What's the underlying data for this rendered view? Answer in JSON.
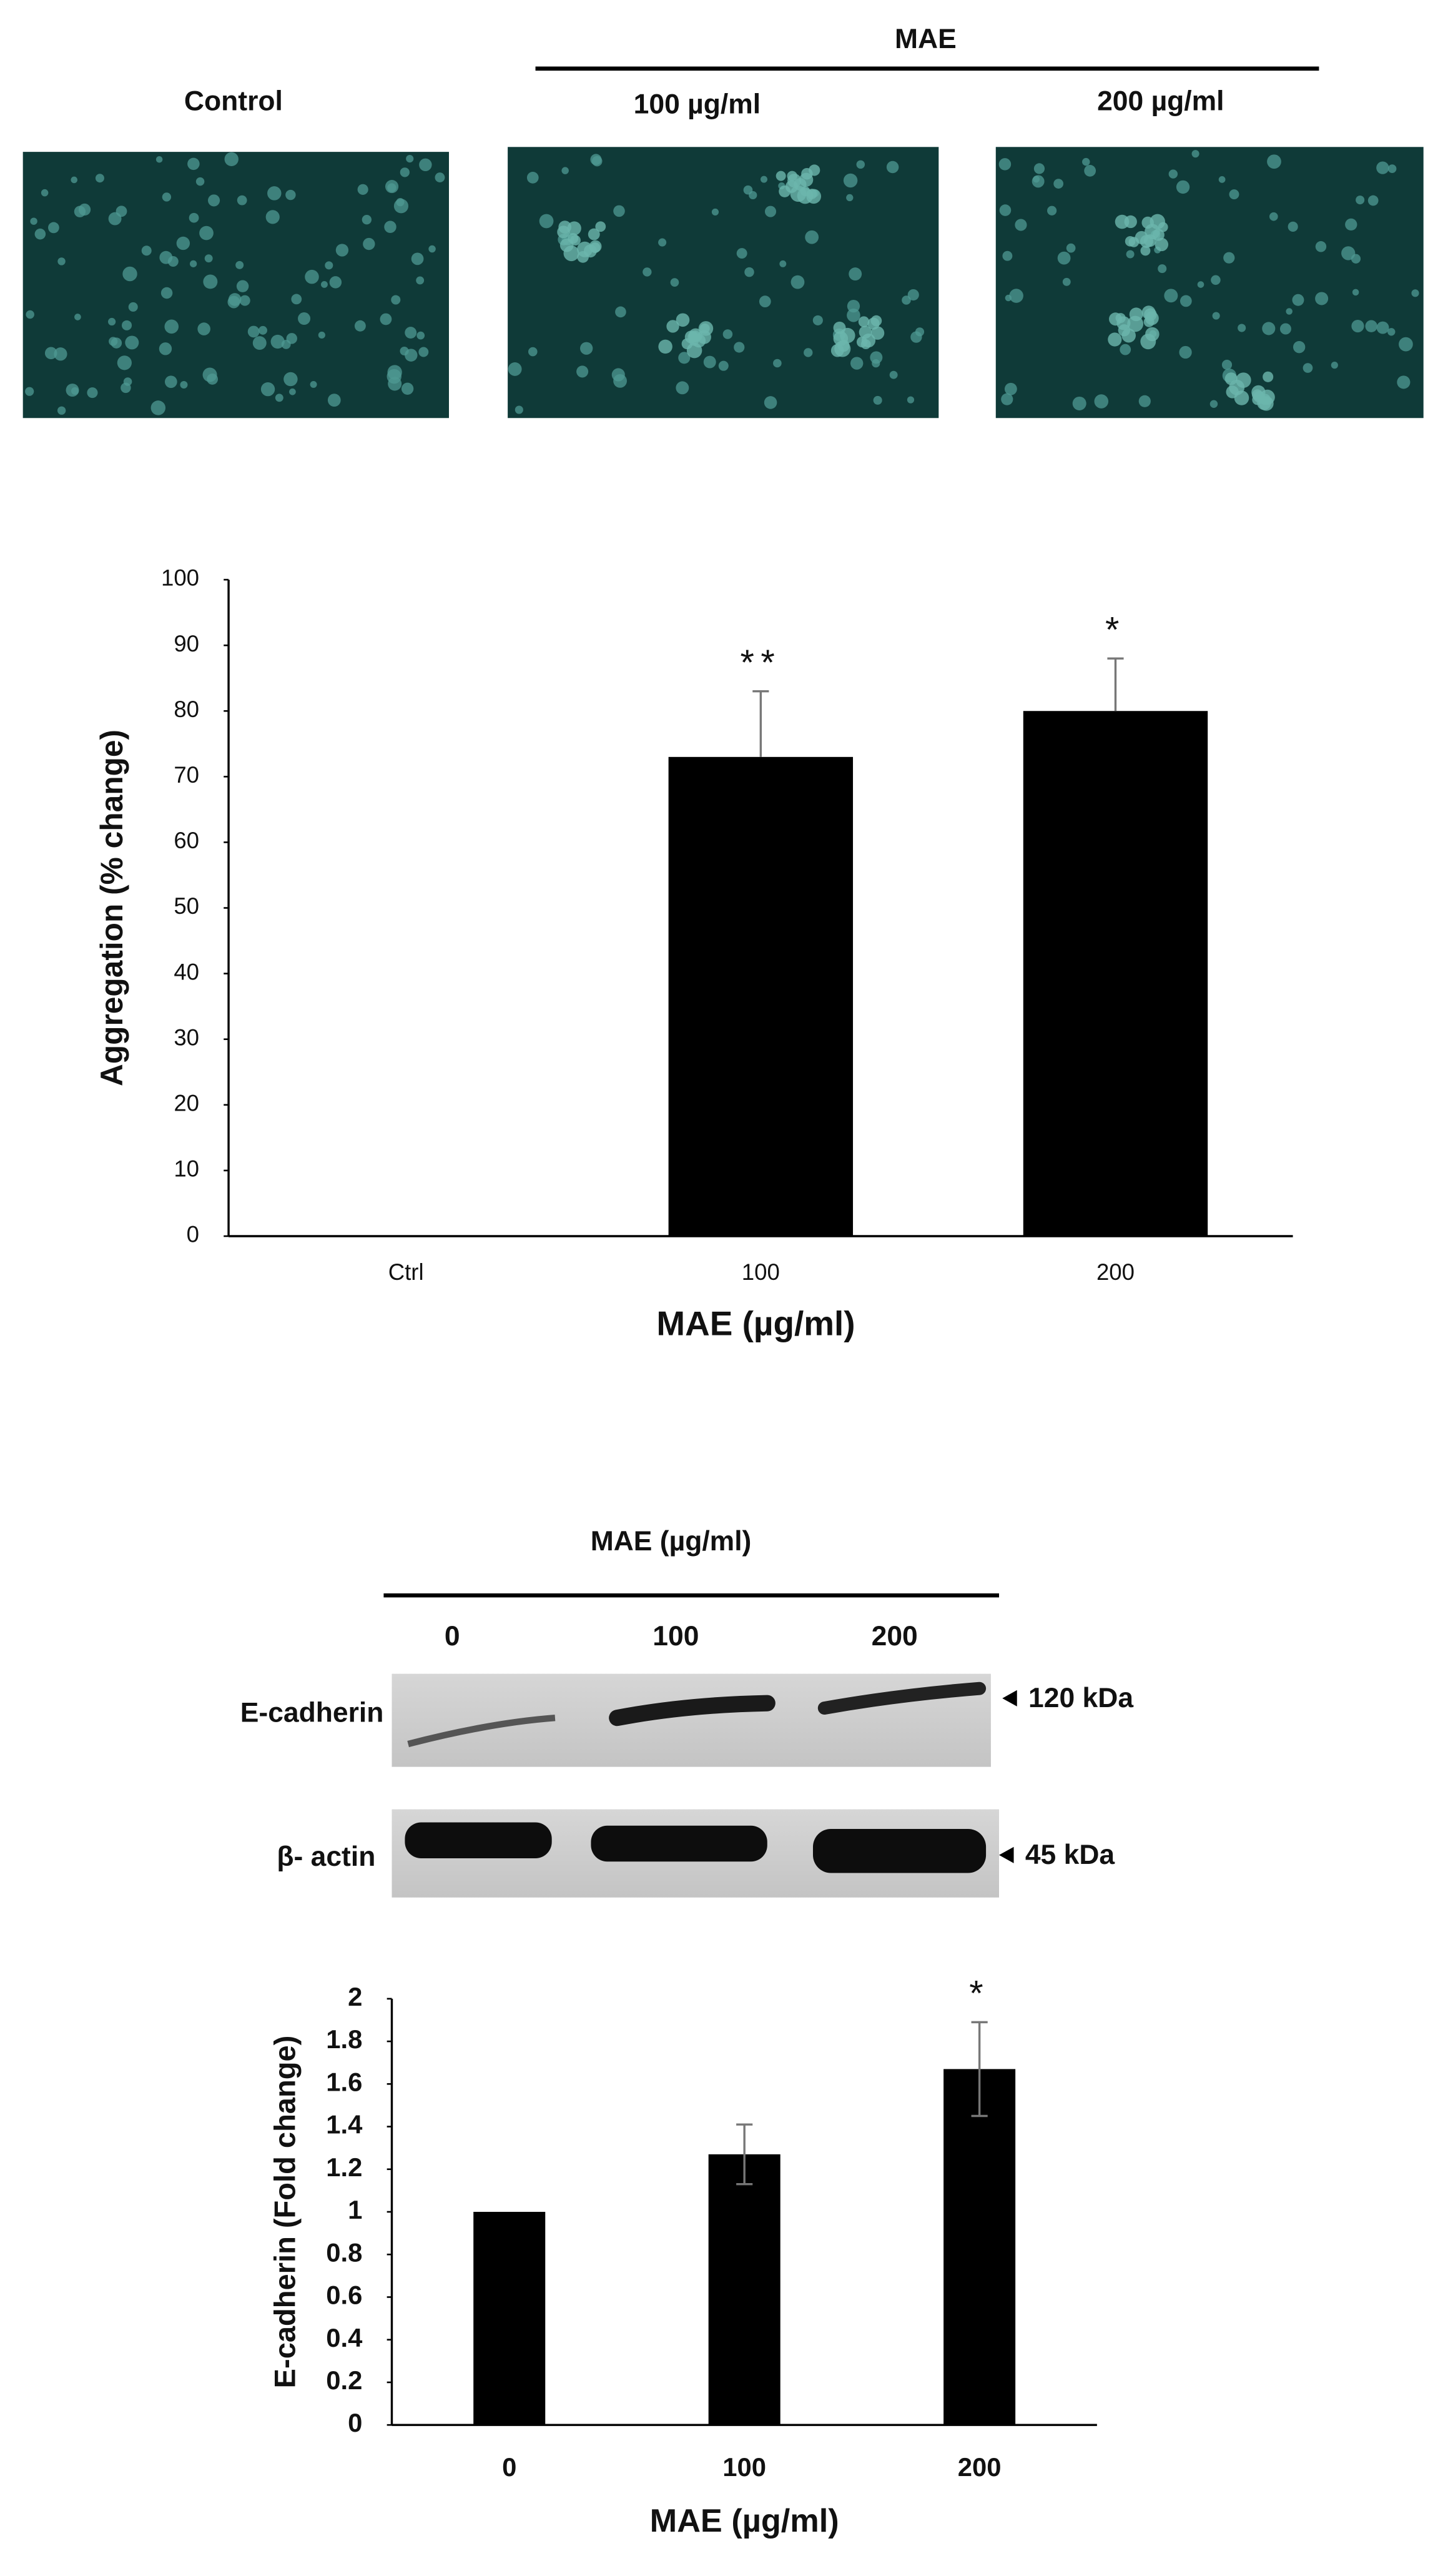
{
  "micrographs": {
    "group_label": "MAE",
    "panels": [
      "Control",
      "100 µg/ml",
      "200 µg/ml"
    ]
  },
  "chart_data": [
    {
      "type": "bar",
      "categories": [
        "Ctrl",
        "100",
        "200"
      ],
      "values": [
        0,
        73,
        80
      ],
      "errors": [
        null,
        10,
        8
      ],
      "error_bars": "up",
      "annotations": [
        null,
        "**",
        "*"
      ],
      "color": "#000000",
      "ylabel": "Aggregation (% change)",
      "xlabel": "MAE (µg/ml)",
      "ylim": [
        0,
        100
      ],
      "yticks": [
        0,
        10,
        20,
        30,
        40,
        50,
        60,
        70,
        80,
        90,
        100
      ],
      "grid": false
    },
    {
      "type": "bar",
      "categories": [
        "0",
        "100",
        "200"
      ],
      "values": [
        1,
        1.27,
        1.67
      ],
      "errors": [
        null,
        0.14,
        0.22
      ],
      "error_bars": "both",
      "annotations": [
        null,
        null,
        "*"
      ],
      "color": "#000000",
      "ylabel": "E-cadherin (Fold change)",
      "xlabel": "MAE (µg/ml)",
      "ylim": [
        0,
        2
      ],
      "yticks": [
        0,
        0.2,
        0.4,
        0.6,
        0.8,
        1,
        1.2,
        1.4,
        1.6,
        1.8,
        2
      ],
      "grid": false
    }
  ],
  "western_blot": {
    "header": "MAE (µg/ml)",
    "lanes": [
      "0",
      "100",
      "200"
    ],
    "rows": [
      {
        "label": "E-cadherin",
        "marker": "120 kDa"
      },
      {
        "label": "β- actin",
        "marker": "45 kDa"
      }
    ]
  }
}
